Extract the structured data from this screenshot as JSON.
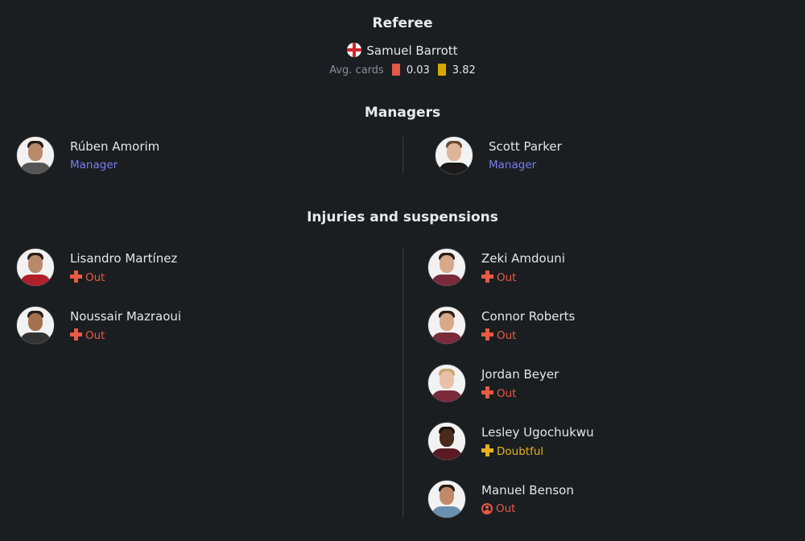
{
  "referee": {
    "heading": "Referee",
    "name": "Samuel Barrott",
    "flag_icon": "england-flag-icon",
    "avg_label": "Avg. cards",
    "red_avg": "0.03",
    "yellow_avg": "3.82",
    "red_color": "#e05a48",
    "yellow_color": "#d9a800"
  },
  "managers": {
    "heading": "Managers",
    "home": {
      "name": "Rúben Amorim",
      "role": "Manager"
    },
    "away": {
      "name": "Scott Parker",
      "role": "Manager"
    }
  },
  "injuries": {
    "heading": "Injuries and suspensions",
    "home": [
      {
        "name": "Lisandro Martínez",
        "status": "Out"
      },
      {
        "name": "Noussair Mazraoui",
        "status": "Out"
      }
    ],
    "away": [
      {
        "name": "Zeki Amdouni",
        "status": "Out"
      },
      {
        "name": "Connor Roberts",
        "status": "Out"
      },
      {
        "name": "Jordan Beyer",
        "status": "Out"
      },
      {
        "name": "Lesley Ugochukwu",
        "status": "Doubtful"
      },
      {
        "name": "Manuel Benson",
        "status": "Out"
      }
    ]
  }
}
